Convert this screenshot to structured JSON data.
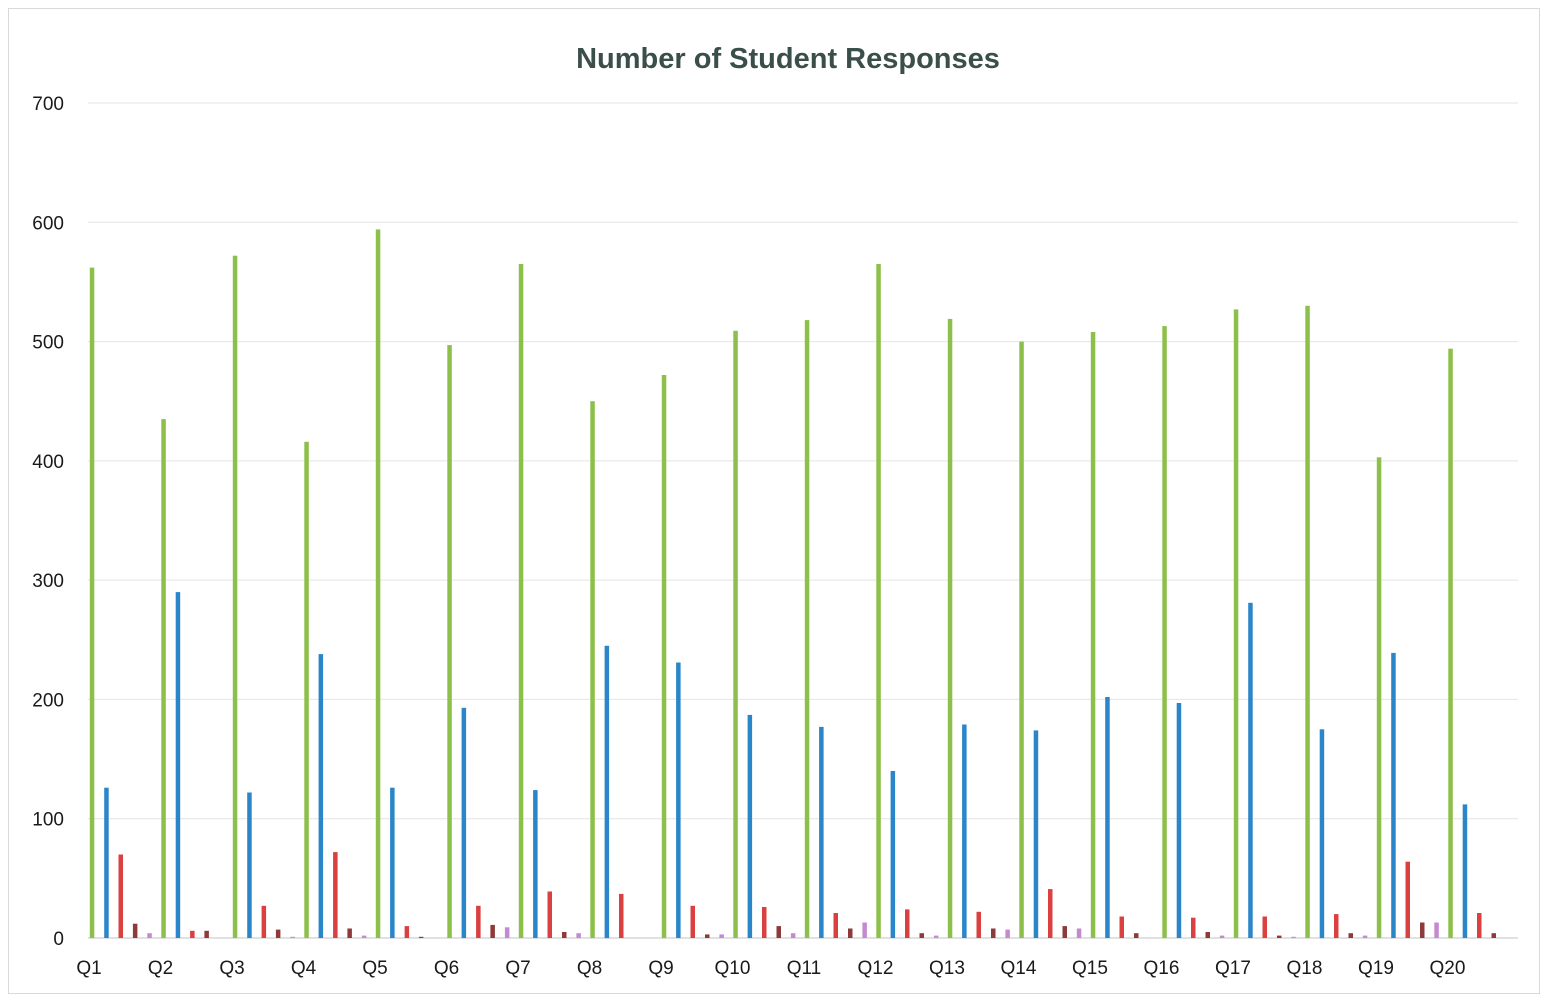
{
  "chart_data": {
    "type": "bar",
    "title": "Number of Student Responses",
    "xlabel": "",
    "ylabel": "",
    "ylim": [
      0,
      700
    ],
    "yticks": [
      0,
      100,
      200,
      300,
      400,
      500,
      600,
      700
    ],
    "grid": true,
    "legend": "none",
    "categories": [
      "Q1",
      "Q2",
      "Q3",
      "Q4",
      "Q5",
      "Q6",
      "Q7",
      "Q8",
      "Q9",
      "Q10",
      "Q11",
      "Q12",
      "Q13",
      "Q14",
      "Q15",
      "Q16",
      "Q17",
      "Q18",
      "Q19",
      "Q20"
    ],
    "series": [
      {
        "color": "#8dc04a",
        "values": [
          562,
          435,
          572,
          416,
          594,
          497,
          565,
          450,
          472,
          509,
          518,
          565,
          519,
          500,
          508,
          513,
          527,
          530,
          403,
          494
        ]
      },
      {
        "color": "#2a86c8",
        "values": [
          126,
          290,
          122,
          238,
          126,
          193,
          124,
          245,
          231,
          187,
          177,
          140,
          179,
          174,
          202,
          197,
          281,
          175,
          239,
          112
        ]
      },
      {
        "color": "#d9403f",
        "values": [
          70,
          6,
          27,
          72,
          10,
          27,
          39,
          37,
          27,
          26,
          21,
          24,
          22,
          41,
          18,
          17,
          18,
          20,
          64,
          21
        ]
      },
      {
        "color": "#8f3a3a",
        "values": [
          12,
          6,
          7,
          8,
          1,
          11,
          5,
          0,
          3,
          10,
          8,
          4,
          8,
          10,
          4,
          5,
          2,
          4,
          13,
          4
        ]
      },
      {
        "color": "#c48ad1",
        "values": [
          4,
          0,
          1,
          2,
          0,
          9,
          4,
          0,
          3,
          4,
          13,
          2,
          7,
          8,
          0,
          2,
          1,
          2,
          13,
          0
        ]
      }
    ]
  }
}
